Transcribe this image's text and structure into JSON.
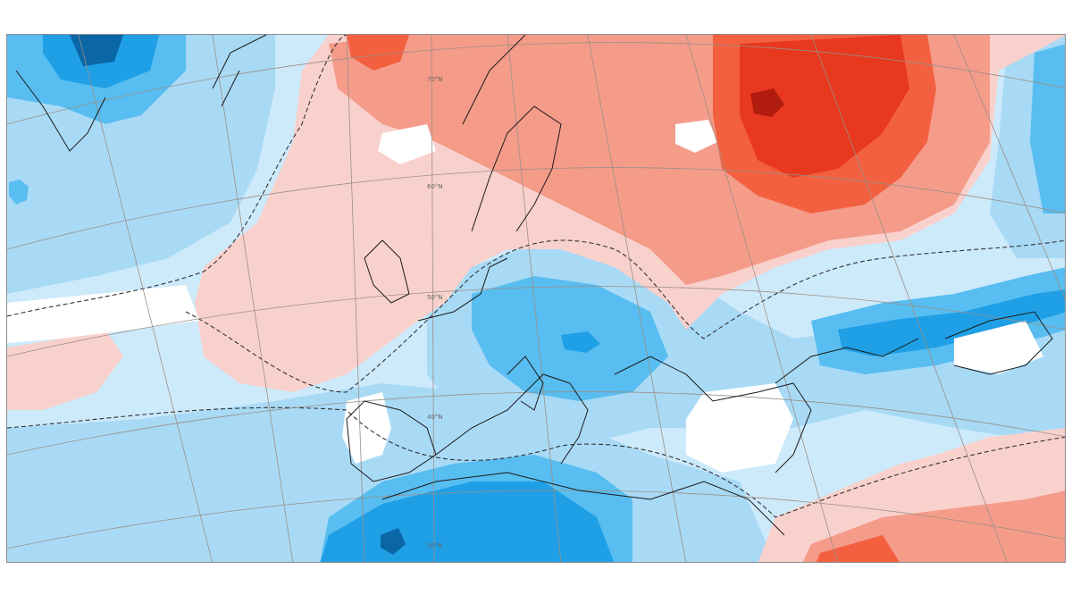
{
  "map": {
    "colors": {
      "background_cold": "#cdeafb",
      "cold_1": "#a8daf6",
      "cold_2": "#58bdf0",
      "cold_3": "#1e9fe6",
      "cold_4": "#0b66a6",
      "neutral": "#ffffff",
      "warm_1": "#f9d1cc",
      "warm_2": "#f59b8a",
      "warm_3": "#f2603f",
      "warm_4": "#e8381f",
      "warm_5": "#b01c0e",
      "graticule": "#9b8f85",
      "coastline": "#1a1a1a",
      "border": "#6a6a6a",
      "zero_contour": "#333333"
    },
    "latitude_labels": [
      "70°N",
      "60°N",
      "50°N",
      "40°N",
      "30°N"
    ]
  }
}
